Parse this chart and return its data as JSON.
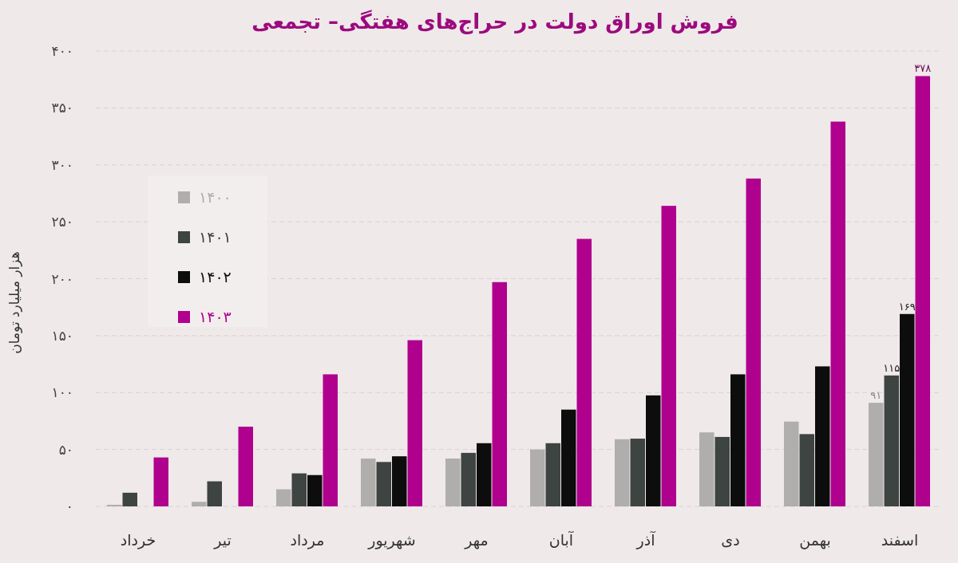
{
  "chart_data": {
    "type": "bar",
    "title": "فروش اوراق دولت در حراج‌های هفتگی– تجمعی",
    "ylabel": "هزار میلیارد تومان",
    "categories": [
      "خرداد",
      "تیر",
      "مرداد",
      "شهریور",
      "مهر",
      "آبان",
      "آذر",
      "دی",
      "بهمن",
      "اسفند"
    ],
    "series": [
      {
        "name": "۱۴۰۰",
        "color": "#b0aeac",
        "values": [
          1.4,
          4,
          15,
          42,
          42,
          50,
          59,
          65,
          74.5,
          91
        ],
        "value_labels": [
          null,
          null,
          null,
          null,
          null,
          null,
          null,
          null,
          null,
          "۹۱"
        ]
      },
      {
        "name": "۱۴۰۱",
        "color": "#3d4442",
        "values": [
          12,
          22,
          29,
          39,
          47,
          55.5,
          59.5,
          61,
          63.5,
          115
        ],
        "value_labels": [
          null,
          null,
          null,
          null,
          null,
          null,
          null,
          null,
          null,
          "۱۱۵"
        ]
      },
      {
        "name": "۱۴۰۲",
        "color": "#0d0d0d",
        "values": [
          null,
          null,
          27.5,
          44,
          55.5,
          85,
          97.5,
          116,
          123,
          169
        ],
        "value_labels": [
          null,
          null,
          null,
          null,
          null,
          null,
          null,
          null,
          null,
          "۱۶۹"
        ]
      },
      {
        "name": "۱۴۰۳",
        "color": "#b0008e",
        "values": [
          43,
          70,
          116,
          146,
          197,
          235,
          264,
          288,
          338,
          378
        ],
        "value_labels": [
          null,
          null,
          null,
          null,
          null,
          null,
          null,
          null,
          null,
          "۳۷۸"
        ]
      }
    ],
    "ylim": [
      0,
      400
    ],
    "yticks": [
      {
        "value": 0,
        "label": "۰"
      },
      {
        "value": 50,
        "label": "۵۰"
      },
      {
        "value": 100,
        "label": "۱۰۰"
      },
      {
        "value": 150,
        "label": "۱۵۰"
      },
      {
        "value": 200,
        "label": "۲۰۰"
      },
      {
        "value": 250,
        "label": "۲۵۰"
      },
      {
        "value": 300,
        "label": "۳۰۰"
      },
      {
        "value": 350,
        "label": "۳۵۰"
      },
      {
        "value": 400,
        "label": "۴۰۰"
      }
    ],
    "grid": "y",
    "legend": "top left"
  }
}
